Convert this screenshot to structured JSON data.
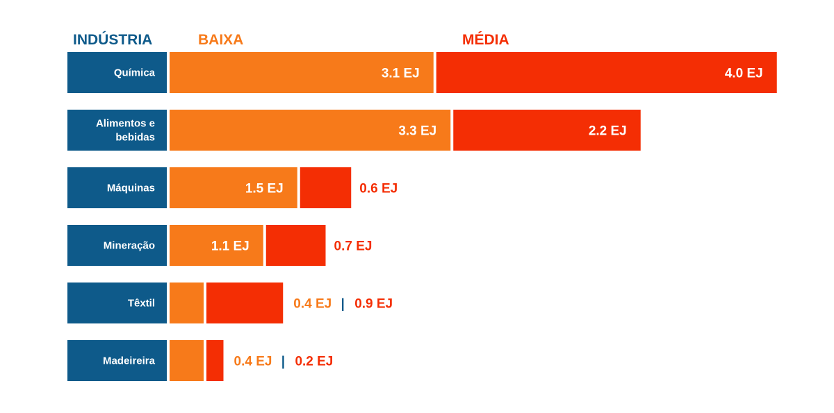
{
  "chart_data": {
    "type": "bar",
    "stacked": true,
    "orientation": "horizontal",
    "unit": "EJ",
    "headers": {
      "category": "INDÚSTRIA",
      "series_low": "BAIXA",
      "series_mid": "MÉDIA"
    },
    "categories": [
      [
        "Química"
      ],
      [
        "Alimentos e",
        "bebidas"
      ],
      [
        "Máquinas"
      ],
      [
        "Mineração"
      ],
      [
        "Têxtil"
      ],
      [
        "Madeireira"
      ]
    ],
    "series": [
      {
        "name": "BAIXA",
        "color": "#F77A1A",
        "values": [
          3.1,
          3.3,
          1.5,
          1.1,
          0.4,
          0.4
        ],
        "labels": [
          "3.1 EJ",
          "3.3 EJ",
          "1.5 EJ",
          "1.1 EJ",
          "0.4 EJ",
          "0.4 EJ"
        ]
      },
      {
        "name": "MÉDIA",
        "color": "#F42E04",
        "values": [
          4.0,
          2.2,
          0.6,
          0.7,
          0.9,
          0.2
        ],
        "labels": [
          "4.0 EJ",
          "2.2 EJ",
          "0.6 EJ",
          "0.7 EJ",
          "0.9 EJ",
          "0.2 EJ"
        ]
      }
    ],
    "separator": "|",
    "colors": {
      "category_box": "#0E5A8A",
      "header_category": "#0E5A8A",
      "header_low": "#F77A1A",
      "header_mid": "#F42E04",
      "label_inside": "#FFFFFF"
    }
  }
}
